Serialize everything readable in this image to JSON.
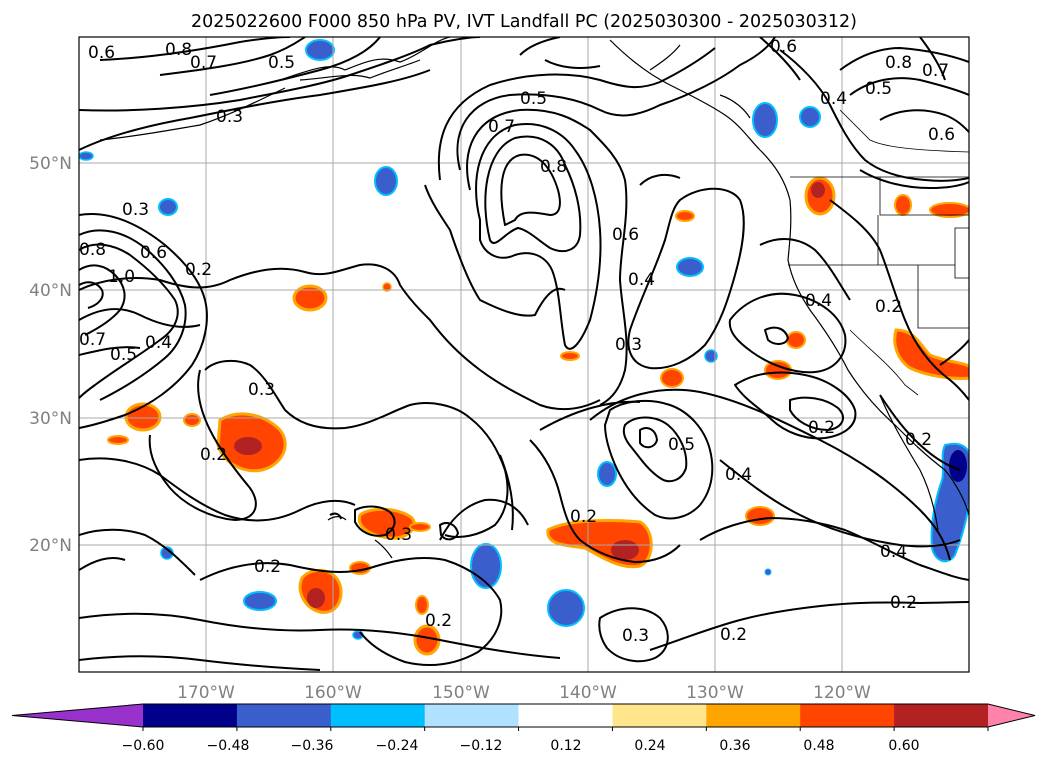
{
  "title": "2025022600 F000 850 hPa PV, IVT Landfall PC (2025030300 - 2025030312)",
  "lat_labels": [
    "50°N",
    "40°N",
    "30°N",
    "20°N"
  ],
  "lon_labels": [
    "170°W",
    "160°W",
    "150°W",
    "140°W",
    "130°W",
    "120°W"
  ],
  "colorbar": {
    "ticks": [
      "−0.60",
      "−0.48",
      "−0.36",
      "−0.24",
      "−0.12",
      "0.12",
      "0.24",
      "0.36",
      "0.48",
      "0.60"
    ],
    "colors": [
      "#9932cc",
      "#00008b",
      "#3a5fcd",
      "#00bfff",
      "#b0e2ff",
      "#ffffff",
      "#ffe68c",
      "#ffa500",
      "#ff4500",
      "#b22222",
      "#ff82ab"
    ]
  },
  "contour_labels": [
    "0.6",
    "0.8",
    "0.7",
    "0.5",
    "0.3",
    "0.5",
    "0.7",
    "0.8",
    "0.6",
    "0.4",
    "0.3",
    "0.6",
    "0.8",
    "0.7",
    "0.5",
    "0.4",
    "0.6",
    "0.3",
    "0.6",
    "0.8",
    "1.0",
    "0.2",
    "0.7",
    "0.5",
    "0.4",
    "0.3",
    "0.2",
    "0.5",
    "0.4",
    "0.4",
    "0.2",
    "0.2",
    "0.2",
    "0.3",
    "0.2",
    "0.2",
    "0.3",
    "0.2",
    "0.4",
    "0.2",
    "0.2"
  ]
}
